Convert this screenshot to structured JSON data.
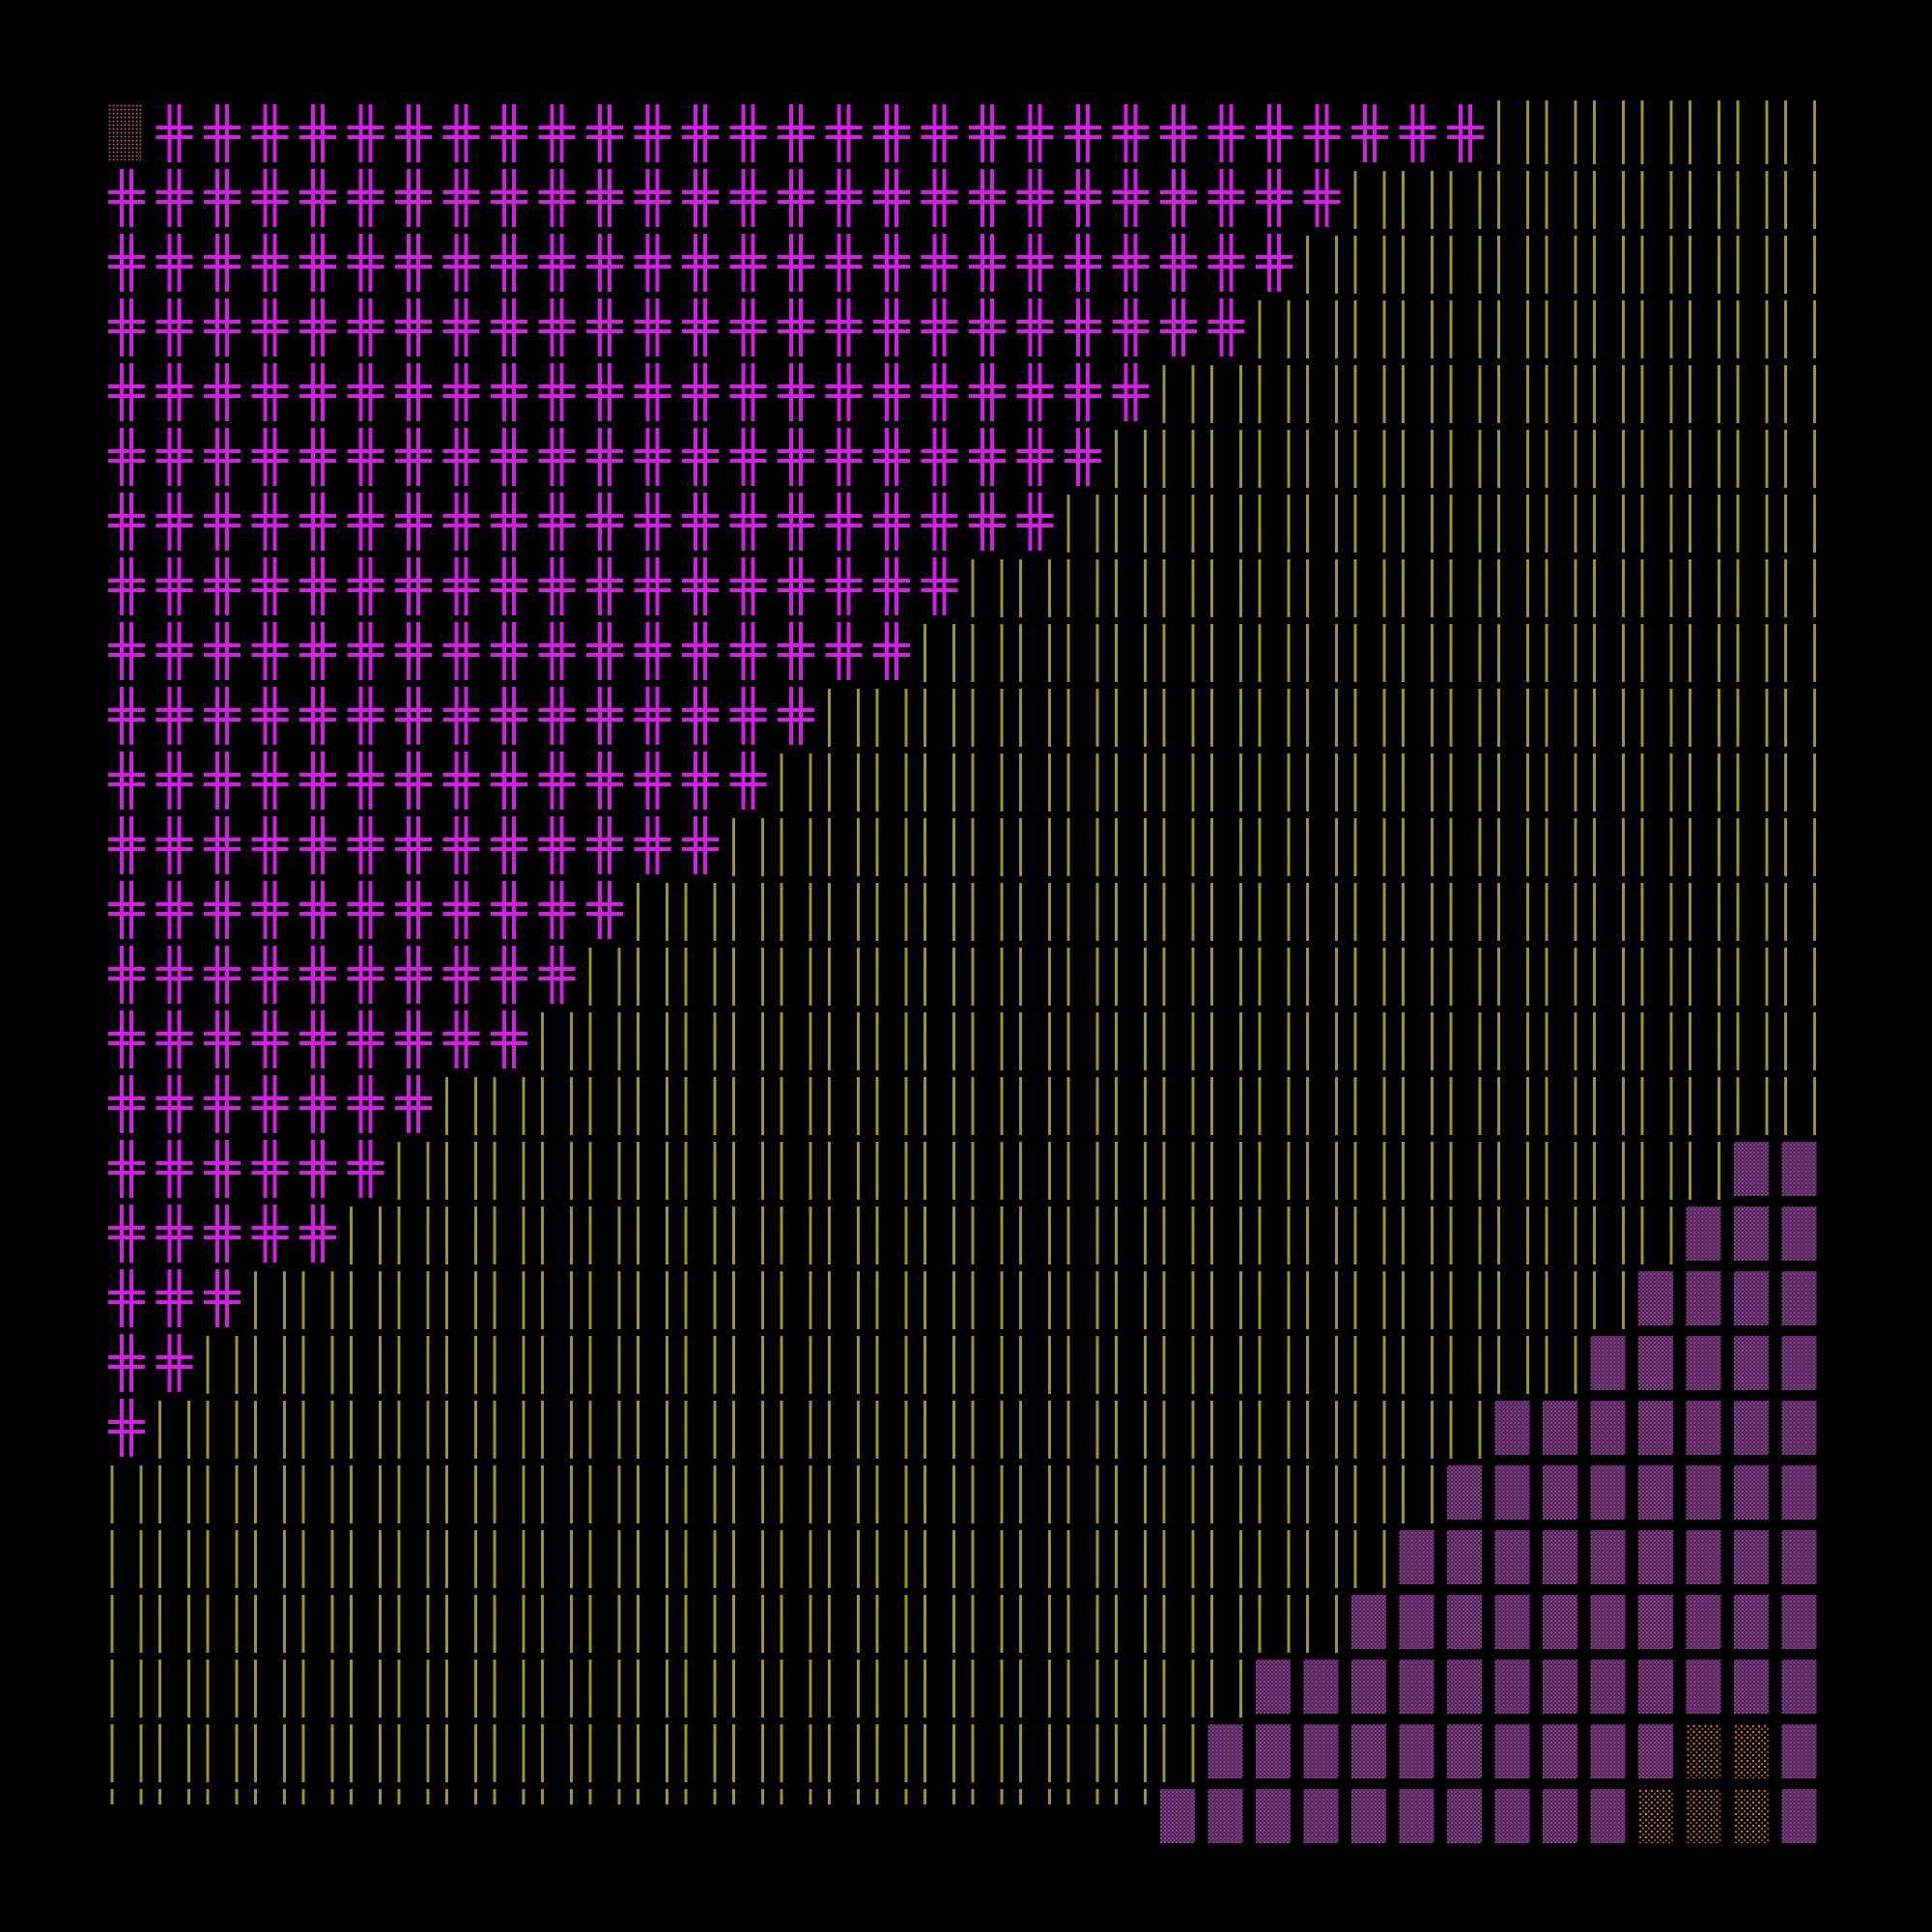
{
  "artwork": {
    "background_color": "#000000",
    "grid": {
      "columns": 36,
      "rows": 27
    },
    "regions": [
      {
        "name": "cross-glyph-region",
        "glyph": "double-cross-icon",
        "color": "#d41ee6"
      },
      {
        "name": "vertical-bar-region",
        "glyph": "vertical-bars-icon",
        "color": "#9c9628"
      },
      {
        "name": "dotted-block-region",
        "glyph": "dotted-block-icon",
        "color": "#6a2e6e"
      },
      {
        "name": "orange-dot-region",
        "glyph": "sparse-dots-icon",
        "color": "#d07a2a"
      },
      {
        "name": "corner-dot-cell",
        "glyph": "dense-dots-icon",
        "color": "#b05a6a"
      }
    ]
  }
}
